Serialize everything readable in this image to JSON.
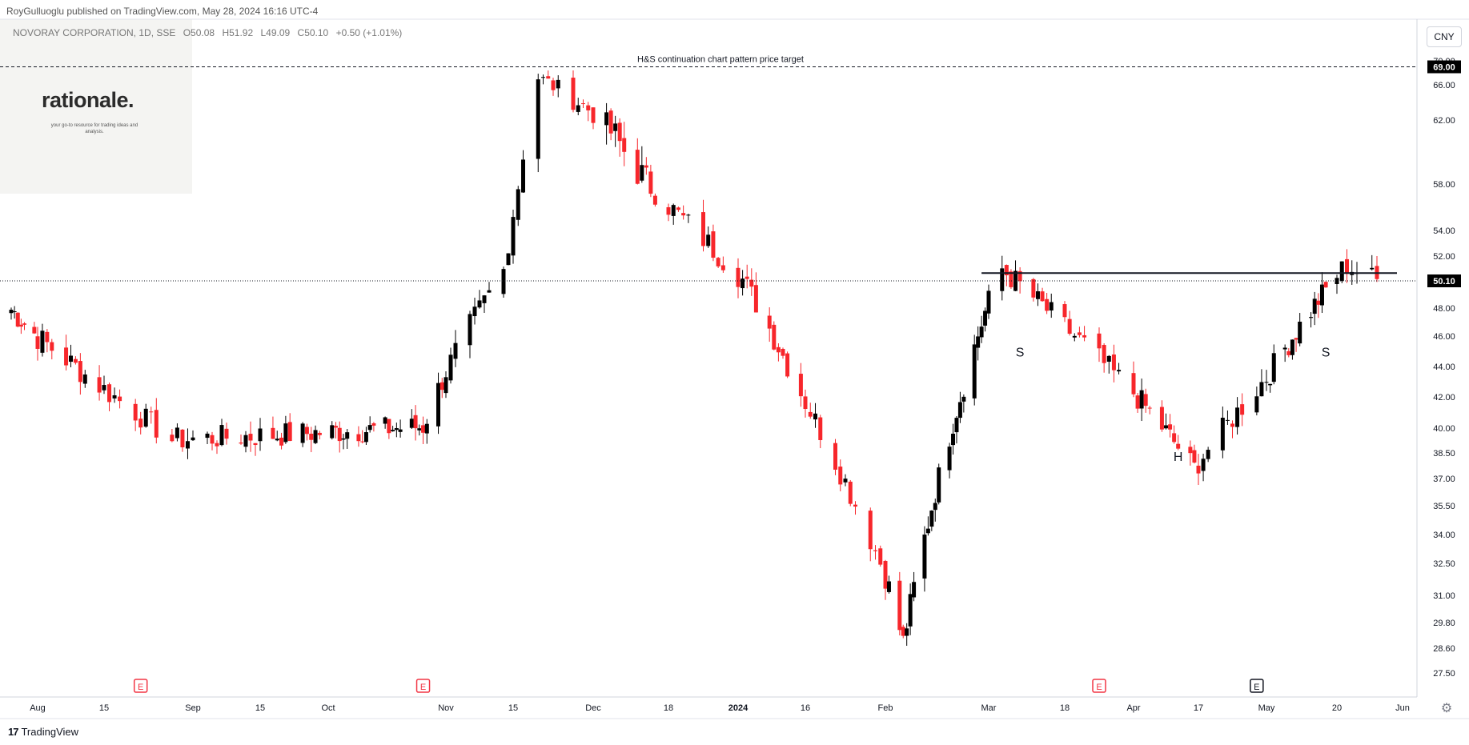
{
  "header": {
    "attribution": "RoyGulluoglu published on TradingView.com, May 28, 2024 16:16 UTC-4",
    "symbol": "NOVORAY CORPORATION, 1D, SSE",
    "open": "O50.08",
    "high": "H51.92",
    "low": "L49.09",
    "close": "C50.10",
    "change": "+0.50 (+1.01%)"
  },
  "logo": {
    "name": "rationale.",
    "tagline": "your go-to resource for trading ideas and analysis."
  },
  "currency_button": "CNY",
  "footer": {
    "brand": "TradingView",
    "settings_icon": "gear-icon"
  },
  "colors": {
    "up": "#000000",
    "down": "#f7262b",
    "price_tag": "#000000"
  },
  "chart_data": {
    "type": "candlestick",
    "title": "",
    "y_axis_ticks": [
      "70.00",
      "66.00",
      "62.00",
      "58.00",
      "54.00",
      "52.00",
      "50.10",
      "48.00",
      "46.00",
      "44.00",
      "42.00",
      "40.00",
      "38.50",
      "37.00",
      "35.50",
      "34.00",
      "32.50",
      "31.00",
      "29.80",
      "28.60",
      "27.50"
    ],
    "x_axis_labels": [
      "Aug",
      "15",
      "Sep",
      "15",
      "Oct",
      "Nov",
      "15",
      "Dec",
      "18",
      "2024",
      "16",
      "Feb",
      "Mar",
      "18",
      "Apr",
      "17",
      "May",
      "20",
      "Jun"
    ],
    "last_price_tag": "50.10",
    "target_tag": "69.00",
    "target_label": "H&S continuation chart pattern price target",
    "neckline_price": 50.7,
    "pattern_labels": [
      {
        "text": "S",
        "date": "2024-03-08",
        "price": 45.4
      },
      {
        "text": "H",
        "date": "2024-04-12",
        "price": 38.7
      },
      {
        "text": "S",
        "date": "2024-05-17",
        "price": 45.4
      }
    ],
    "earnings_markers": [
      {
        "text": "E",
        "date": "2023-08-22"
      },
      {
        "text": "E",
        "date": "2023-10-26"
      },
      {
        "text": "E",
        "date": "2024-03-25"
      },
      {
        "text": "E",
        "date": "2024-04-29"
      }
    ],
    "key_points": [
      {
        "date": "2023-07-24",
        "close": 47.9
      },
      {
        "date": "2023-08-28",
        "close": 39.3
      },
      {
        "date": "2023-10-26",
        "close": 40.1
      },
      {
        "date": "2023-11-13",
        "close": 50.9
      },
      {
        "date": "2023-11-20",
        "high": 67.2
      },
      {
        "date": "2024-01-02",
        "close": 50.2
      },
      {
        "date": "2024-02-06",
        "low": 28.9
      },
      {
        "date": "2024-03-04",
        "high": 51.0
      },
      {
        "date": "2024-04-16",
        "low": 37.6
      },
      {
        "date": "2024-05-22",
        "high": 51.3
      },
      {
        "date": "2024-05-28",
        "open": 50.08,
        "high": 51.92,
        "low": 49.09,
        "close": 50.1
      }
    ]
  }
}
